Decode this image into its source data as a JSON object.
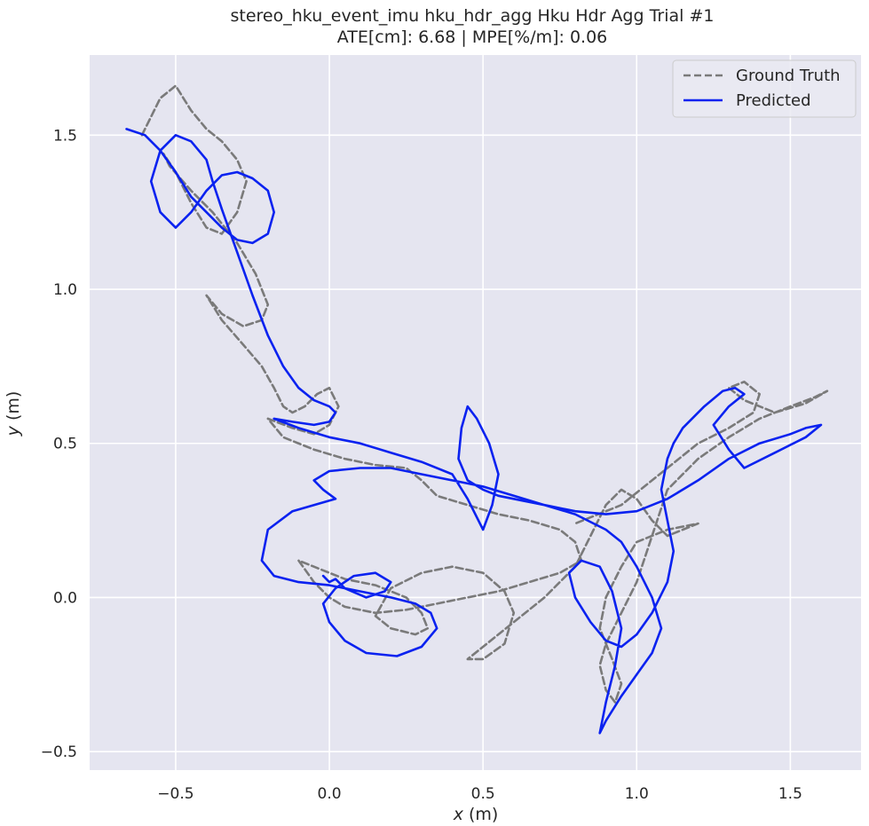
{
  "chart_data": {
    "type": "line",
    "title_line1": "stereo_hku_event_imu hku_hdr_agg Hku Hdr Agg Trial #1",
    "title_line2": "ATE[cm]: 6.68 | MPE[%/m]: 0.06",
    "xlabel_var": "x",
    "xlabel_unit": " (m)",
    "ylabel_var": "y",
    "ylabel_unit": " (m)",
    "xlim": [
      -0.78,
      1.73
    ],
    "ylim": [
      -0.56,
      1.76
    ],
    "x_ticks": [
      -0.5,
      0.0,
      0.5,
      1.0,
      1.5
    ],
    "x_tick_labels": [
      "−0.5",
      "0.0",
      "0.5",
      "1.0",
      "1.5"
    ],
    "y_ticks": [
      -0.5,
      0.0,
      0.5,
      1.0,
      1.5
    ],
    "y_tick_labels": [
      "−0.5",
      "0.0",
      "0.5",
      "1.0",
      "1.5"
    ],
    "grid": true,
    "legend_position": "top-right",
    "background_color": "#e5e5f0",
    "series": [
      {
        "name": "Ground Truth",
        "style": "dashed",
        "color": "#7a7a7a",
        "x": [
          -0.61,
          -0.55,
          -0.5,
          -0.45,
          -0.4,
          -0.35,
          -0.3,
          -0.27,
          -0.3,
          -0.35,
          -0.4,
          -0.45,
          -0.5,
          -0.54,
          -0.52,
          -0.45,
          -0.38,
          -0.3,
          -0.24,
          -0.2,
          -0.22,
          -0.28,
          -0.35,
          -0.4,
          -0.35,
          -0.28,
          -0.22,
          -0.18,
          -0.15,
          -0.12,
          -0.08,
          -0.04,
          0.0,
          0.03,
          0.0,
          -0.05,
          -0.12,
          -0.2,
          -0.15,
          -0.05,
          0.05,
          0.15,
          0.25,
          0.3,
          0.35,
          0.45,
          0.55,
          0.65,
          0.75,
          0.8,
          0.82,
          0.75,
          0.65,
          0.55,
          0.45,
          0.35,
          0.25,
          0.15,
          0.05,
          0.0,
          -0.05,
          -0.1,
          -0.05,
          0.05,
          0.15,
          0.25,
          0.3,
          0.32,
          0.28,
          0.2,
          0.15,
          0.2,
          0.3,
          0.4,
          0.5,
          0.57,
          0.6,
          0.57,
          0.5,
          0.45,
          0.5,
          0.6,
          0.7,
          0.8,
          0.85,
          0.9,
          0.95,
          1.0,
          1.05,
          1.1,
          1.15,
          1.2,
          1.1,
          1.0,
          0.95,
          0.9,
          0.88,
          0.92,
          0.95,
          0.93,
          0.9,
          0.88,
          0.9,
          0.95,
          1.0,
          1.05,
          1.1,
          1.2,
          1.3,
          1.4,
          1.5,
          1.58,
          1.62,
          1.55,
          1.45,
          1.35,
          1.3,
          1.35,
          1.4,
          1.38,
          1.3,
          1.2,
          1.15,
          1.1,
          1.05,
          1.0,
          0.95,
          0.9,
          0.85,
          0.8
        ],
        "y": [
          1.5,
          1.62,
          1.66,
          1.58,
          1.52,
          1.48,
          1.42,
          1.35,
          1.25,
          1.18,
          1.2,
          1.28,
          1.38,
          1.44,
          1.4,
          1.32,
          1.25,
          1.15,
          1.05,
          0.95,
          0.9,
          0.88,
          0.92,
          0.98,
          0.9,
          0.82,
          0.75,
          0.68,
          0.62,
          0.6,
          0.62,
          0.66,
          0.68,
          0.62,
          0.56,
          0.53,
          0.55,
          0.58,
          0.52,
          0.48,
          0.45,
          0.43,
          0.42,
          0.38,
          0.33,
          0.3,
          0.27,
          0.25,
          0.22,
          0.18,
          0.12,
          0.08,
          0.05,
          0.02,
          0.0,
          -0.02,
          -0.04,
          -0.05,
          -0.03,
          0.0,
          0.05,
          0.12,
          0.1,
          0.06,
          0.04,
          0.0,
          -0.05,
          -0.1,
          -0.12,
          -0.1,
          -0.06,
          0.03,
          0.08,
          0.1,
          0.08,
          0.02,
          -0.05,
          -0.15,
          -0.2,
          -0.2,
          -0.16,
          -0.08,
          0.0,
          0.1,
          0.2,
          0.3,
          0.35,
          0.32,
          0.25,
          0.2,
          0.22,
          0.24,
          0.22,
          0.18,
          0.1,
          0.0,
          -0.1,
          -0.2,
          -0.28,
          -0.34,
          -0.3,
          -0.22,
          -0.15,
          -0.05,
          0.05,
          0.2,
          0.35,
          0.45,
          0.52,
          0.58,
          0.62,
          0.65,
          0.67,
          0.63,
          0.6,
          0.64,
          0.68,
          0.7,
          0.66,
          0.6,
          0.55,
          0.5,
          0.46,
          0.42,
          0.38,
          0.34,
          0.3,
          0.28,
          0.26,
          0.24
        ]
      },
      {
        "name": "Predicted",
        "style": "solid",
        "color": "#0a22f0",
        "x": [
          -0.66,
          -0.6,
          -0.55,
          -0.5,
          -0.45,
          -0.4,
          -0.35,
          -0.3,
          -0.25,
          -0.2,
          -0.18,
          -0.2,
          -0.25,
          -0.3,
          -0.35,
          -0.4,
          -0.45,
          -0.5,
          -0.55,
          -0.58,
          -0.55,
          -0.5,
          -0.45,
          -0.4,
          -0.38,
          -0.35,
          -0.3,
          -0.25,
          -0.2,
          -0.15,
          -0.1,
          -0.05,
          0.0,
          0.02,
          0.0,
          -0.05,
          -0.12,
          -0.18,
          -0.1,
          0.0,
          0.1,
          0.2,
          0.3,
          0.4,
          0.45,
          0.5,
          0.53,
          0.55,
          0.52,
          0.48,
          0.45,
          0.43,
          0.42,
          0.45,
          0.5,
          0.55,
          0.6,
          0.7,
          0.8,
          0.9,
          1.0,
          1.1,
          1.2,
          1.3,
          1.4,
          1.5,
          1.55,
          1.6,
          1.55,
          1.45,
          1.35,
          1.3,
          1.25,
          1.3,
          1.35,
          1.32,
          1.28,
          1.22,
          1.15,
          1.12,
          1.1,
          1.08,
          1.1,
          1.12,
          1.1,
          1.05,
          1.0,
          0.95,
          0.9,
          0.85,
          0.8,
          0.78,
          0.82,
          0.88,
          0.92,
          0.95,
          0.93,
          0.9,
          0.88,
          0.9,
          0.95,
          1.0,
          1.05,
          1.08,
          1.05,
          1.0,
          0.95,
          0.9,
          0.8,
          0.7,
          0.6,
          0.5,
          0.4,
          0.3,
          0.2,
          0.1,
          0.0,
          -0.05,
          -0.02,
          0.02,
          -0.05,
          -0.12,
          -0.2,
          -0.22,
          -0.18,
          -0.1,
          0.0,
          0.1,
          0.2,
          0.28,
          0.33,
          0.35,
          0.3,
          0.22,
          0.12,
          0.05,
          0.0,
          -0.02,
          0.02,
          0.08,
          0.15,
          0.2,
          0.18,
          0.12,
          0.05,
          0.02,
          0.0,
          -0.02
        ],
        "y": [
          1.52,
          1.5,
          1.45,
          1.38,
          1.3,
          1.25,
          1.2,
          1.16,
          1.15,
          1.18,
          1.25,
          1.32,
          1.36,
          1.38,
          1.37,
          1.32,
          1.25,
          1.2,
          1.25,
          1.35,
          1.45,
          1.5,
          1.48,
          1.42,
          1.35,
          1.26,
          1.12,
          0.98,
          0.85,
          0.75,
          0.68,
          0.64,
          0.62,
          0.6,
          0.57,
          0.56,
          0.57,
          0.58,
          0.55,
          0.52,
          0.5,
          0.47,
          0.44,
          0.4,
          0.32,
          0.22,
          0.3,
          0.4,
          0.5,
          0.58,
          0.62,
          0.55,
          0.45,
          0.38,
          0.35,
          0.33,
          0.32,
          0.3,
          0.28,
          0.27,
          0.28,
          0.32,
          0.38,
          0.45,
          0.5,
          0.53,
          0.55,
          0.56,
          0.52,
          0.47,
          0.42,
          0.48,
          0.56,
          0.62,
          0.66,
          0.68,
          0.67,
          0.62,
          0.55,
          0.5,
          0.45,
          0.35,
          0.25,
          0.15,
          0.05,
          -0.05,
          -0.12,
          -0.16,
          -0.14,
          -0.08,
          0.0,
          0.08,
          0.12,
          0.1,
          0.02,
          -0.1,
          -0.22,
          -0.34,
          -0.44,
          -0.4,
          -0.32,
          -0.25,
          -0.18,
          -0.1,
          0.0,
          0.1,
          0.18,
          0.22,
          0.27,
          0.3,
          0.33,
          0.36,
          0.38,
          0.4,
          0.42,
          0.42,
          0.41,
          0.38,
          0.35,
          0.32,
          0.3,
          0.28,
          0.22,
          0.12,
          0.07,
          0.05,
          0.04,
          0.02,
          0.0,
          -0.02,
          -0.05,
          -0.1,
          -0.16,
          -0.19,
          -0.18,
          -0.14,
          -0.08,
          -0.02,
          0.03,
          0.07,
          0.08,
          0.05,
          0.02,
          0.0,
          0.03,
          0.06,
          0.05,
          0.07
        ]
      }
    ]
  }
}
